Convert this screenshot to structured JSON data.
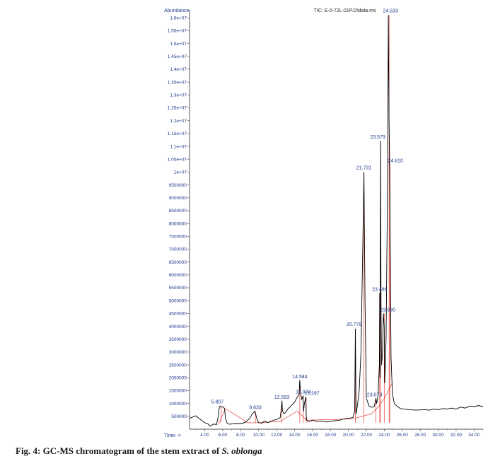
{
  "chart_data": {
    "type": "line",
    "title": "TIC: E-0-72L-01P.D\\data.ms",
    "ylabel": "Abundance",
    "xlabel": "Time-->",
    "xlim": [
      2.3,
      35.0
    ],
    "ylim": [
      0,
      16200000
    ],
    "x_ticks": [
      4,
      6,
      8,
      10,
      12,
      14,
      16,
      18,
      20,
      22,
      24,
      26,
      28,
      30,
      32,
      34
    ],
    "x_tick_labels": [
      "4.00",
      "6.00",
      "8.00",
      "10.00",
      "12.00",
      "14.00",
      "16.00",
      "18.00",
      "20.00",
      "22.00",
      "24.00",
      "26.00",
      "28.00",
      "30.00",
      "32.00",
      "34.00"
    ],
    "y_ticks": [
      500000,
      1000000,
      1500000,
      2000000,
      2500000,
      3000000,
      3500000,
      4000000,
      4500000,
      5000000,
      5500000,
      6000000,
      6500000,
      7000000,
      7500000,
      8000000,
      8500000,
      9000000,
      9500000,
      10000000,
      10500000,
      11000000,
      11500000,
      12000000,
      12500000,
      13000000,
      13500000,
      14000000,
      14500000,
      15000000,
      15500000,
      16000000
    ],
    "y_tick_labels": [
      "500000",
      "1000000",
      "1500000",
      "2000000",
      "2500000",
      "3000000",
      "3500000",
      "4000000",
      "4500000",
      "5000000",
      "5500000",
      "6000000",
      "6500000",
      "7000000",
      "7500000",
      "8000000",
      "8500000",
      "9000000",
      "9500000",
      "1e+07",
      "1.05e+07",
      "1.1e+07",
      "1.15e+07",
      "1.2e+07",
      "1.25e+07",
      "1.3e+07",
      "1.35e+07",
      "1.4e+07",
      "1.45e+07",
      "1.5e+07",
      "1.55e+07",
      "1.6e+07"
    ],
    "series": [
      {
        "values_x": [
          2.3,
          3.0,
          3.5,
          4.0,
          4.3,
          4.6,
          5.0,
          5.3,
          5.5,
          5.6,
          5.7,
          5.8,
          5.9,
          6.0,
          6.1,
          6.2,
          6.3,
          6.5,
          6.8,
          7.0,
          7.5,
          8.0,
          8.5,
          9.0,
          9.3,
          9.6,
          9.8,
          10.0,
          10.3,
          10.7,
          11.0,
          11.5,
          12.0,
          12.4,
          12.55,
          12.6,
          12.65,
          12.8,
          13.0,
          13.3,
          13.6,
          14.0,
          14.3,
          14.5,
          14.58,
          14.66,
          14.8,
          14.95,
          15.0,
          15.1,
          15.25,
          15.3,
          15.4,
          15.7,
          16.0,
          16.5,
          17.0,
          17.5,
          18.0,
          18.5,
          19.0,
          19.5,
          20.0,
          20.5,
          20.7,
          20.78,
          20.85,
          21.0,
          21.2,
          21.4,
          21.6,
          21.73,
          21.85,
          22.0,
          22.3,
          22.6,
          22.9,
          23.0,
          23.07,
          23.15,
          23.3,
          23.45,
          23.49,
          23.52,
          23.58,
          23.64,
          23.7,
          23.8,
          23.9,
          23.99,
          24.05,
          24.2,
          24.35,
          24.45,
          24.53,
          24.6,
          24.68,
          24.75,
          24.9,
          25.1,
          25.4,
          25.8,
          26.2,
          26.8,
          27.5,
          28.0,
          28.5,
          29.0,
          29.5,
          30.0,
          30.5,
          31.0,
          31.5,
          32.0,
          32.5,
          33.0,
          33.5,
          34.0,
          34.5,
          35.0
        ],
        "values_y": [
          420000,
          520000,
          380000,
          250000,
          220000,
          120000,
          200000,
          180000,
          500000,
          830000,
          900000,
          880000,
          860000,
          870000,
          850000,
          800000,
          420000,
          220000,
          190000,
          210000,
          220000,
          220000,
          260000,
          420000,
          600000,
          700000,
          400000,
          260000,
          230000,
          320000,
          250000,
          330000,
          380000,
          450000,
          900000,
          1100000,
          720000,
          600000,
          650000,
          800000,
          900000,
          1050000,
          1250000,
          1350000,
          1900000,
          1450000,
          1150000,
          1300000,
          700000,
          1000000,
          1250000,
          500000,
          320000,
          300000,
          350000,
          300000,
          320000,
          280000,
          300000,
          330000,
          350000,
          400000,
          420000,
          450000,
          700000,
          3900000,
          600000,
          900000,
          1500000,
          3000000,
          7000000,
          10000000,
          5000000,
          1200000,
          900000,
          850000,
          900000,
          1100000,
          1200000,
          1000000,
          1300000,
          2500000,
          5300000,
          2000000,
          11200000,
          4500000,
          2500000,
          3000000,
          4500000,
          4000000,
          1800000,
          3500000,
          9000000,
          16100000,
          12000000,
          10300000,
          6000000,
          2800000,
          1400000,
          1000000,
          900000,
          800000,
          780000,
          760000,
          740000,
          750000,
          760000,
          740000,
          780000,
          760000,
          800000,
          790000,
          820000,
          780000,
          860000,
          820000,
          900000,
          880000,
          920000,
          880000
        ]
      }
    ],
    "peaks": [
      {
        "rt": 5.8,
        "label": "5.807",
        "y": 900000
      },
      {
        "rt": 9.633,
        "label": "9.633",
        "y": 700000
      },
      {
        "rt": 12.593,
        "label": "12.593",
        "y": 1100000
      },
      {
        "rt": 14.584,
        "label": "14.584",
        "y": 1900000
      },
      {
        "rt": 14.97,
        "label": "14.974",
        "y": 1300000
      },
      {
        "rt": 15.297,
        "label": "15.297",
        "y": 1250000
      },
      {
        "rt": 20.779,
        "label": "20.779",
        "y": 3900000
      },
      {
        "rt": 21.731,
        "label": "21.731",
        "y": 10000000
      },
      {
        "rt": 23.073,
        "label": "23.073",
        "y": 1200000
      },
      {
        "rt": 23.486,
        "label": "23.486",
        "y": 5300000
      },
      {
        "rt": 23.579,
        "label": "23.579",
        "y": 11200000
      },
      {
        "rt": 23.99,
        "label": "23.990",
        "y": 4500000
      },
      {
        "rt": 24.533,
        "label": "24.533",
        "y": 16100000
      },
      {
        "rt": 24.61,
        "label": "24.610",
        "y": 10300000
      }
    ],
    "legend": "none",
    "grid": false,
    "colors": {
      "trace": "#000000",
      "baseline": "#e0211b",
      "labels": "#1f3b8c",
      "axis": "#555555"
    }
  },
  "caption": {
    "prefix": "Fig. 4: GC-MS chromatogram of the stem extract of ",
    "species": "S. oblonga"
  }
}
